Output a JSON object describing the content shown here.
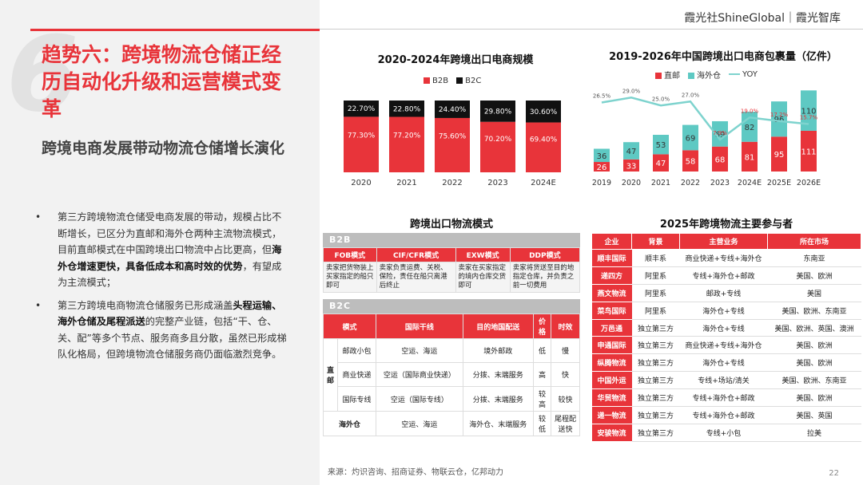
{
  "brand": "霞光社ShineGlobal｜霞光智库",
  "big_number": "6",
  "title": "趋势六：跨境物流仓储正经历自动化升级和运营模式变革",
  "subtitle": "跨境电商发展带动物流仓储增长演化",
  "bullets": [
    {
      "pre": "第三方跨境物流仓储受电商发展的带动，规模占比不断增长，已区分为直邮和海外仓两种主流物流模式，目前直邮模式在中国跨境出口物流中占比更高，但",
      "bold": "海外仓增速更快，具备低成本和高时效的优势",
      "post": "，有望成为主流模式；"
    },
    {
      "pre": "第三方跨境电商物流仓储服务已形成涵盖",
      "bold": "头程运输、海外仓储及尾程派送",
      "post": "的完整产业链，包括“干、仓、关、配”等多个节点、服务商多且分散，虽然已形成梯队化格局，但跨境物流仓储服务商仍面临激烈竞争。"
    }
  ],
  "chart1": {
    "title": "2020-2024年跨境出口电商规模",
    "legend": [
      "B2B",
      "B2C"
    ],
    "colors": {
      "b2b": "#e8343a",
      "b2c": "#111111"
    },
    "categories": [
      "2020",
      "2021",
      "2022",
      "2023",
      "2024E"
    ],
    "b2b_labels": [
      "77.30%",
      "77.20%",
      "75.60%",
      "70.20%",
      "69.40%"
    ],
    "b2c_labels": [
      "22.70%",
      "22.80%",
      "24.40%",
      "29.80%",
      "30.60%"
    ]
  },
  "chart2": {
    "title": "2019-2026年中国跨境出口电商包裹量（亿件）",
    "legend": [
      "直邮",
      "海外仓",
      "YOY"
    ],
    "colors": {
      "direct": "#e8343a",
      "overseas": "#5ec9c3",
      "yoy": "#7ed3ce"
    },
    "categories": [
      "2019",
      "2020",
      "2021",
      "2022",
      "2023",
      "2024E",
      "2025E",
      "2026E"
    ],
    "direct_labels": [
      "26",
      "33",
      "47",
      "58",
      "68",
      "81",
      "95",
      "111"
    ],
    "overseas_labels": [
      "36",
      "47",
      "53",
      "69",
      "69",
      "82",
      "96",
      "110"
    ],
    "yoy_labels": [
      "26.5%",
      "29.0%",
      "25.0%",
      "27.0%",
      "7.9%",
      "19.0%",
      "17.2%",
      "15.7%"
    ]
  },
  "chart_data": [
    {
      "type": "bar",
      "title": "2020-2024年跨境出口电商规模",
      "categories": [
        "2020",
        "2021",
        "2022",
        "2023",
        "2024E"
      ],
      "series": [
        {
          "name": "B2B",
          "values": [
            77.3,
            77.2,
            75.6,
            70.2,
            69.4
          ]
        },
        {
          "name": "B2C",
          "values": [
            22.7,
            22.8,
            24.4,
            29.8,
            30.6
          ]
        }
      ],
      "ylim": [
        0,
        100
      ]
    },
    {
      "type": "bar",
      "title": "2019-2026年中国跨境出口电商包裹量（亿件）",
      "categories": [
        "2019",
        "2020",
        "2021",
        "2022",
        "2023",
        "2024E",
        "2025E",
        "2026E"
      ],
      "series": [
        {
          "name": "直邮",
          "values": [
            26,
            33,
            47,
            58,
            68,
            81,
            95,
            111
          ]
        },
        {
          "name": "海外仓",
          "values": [
            36,
            47,
            53,
            69,
            69,
            82,
            96,
            110
          ]
        },
        {
          "name": "YOY",
          "values": [
            26.5,
            29.0,
            25.0,
            27.0,
            7.9,
            19.0,
            17.2,
            15.7
          ]
        }
      ]
    }
  ],
  "logistics": {
    "title": "跨境出口物流模式",
    "b2b_label": "B2B",
    "b2b_headers": [
      "FOB模式",
      "CIF/CFR模式",
      "EXW模式",
      "DDP模式"
    ],
    "b2b_desc": [
      "卖家把货物装上买家指定的船只即可",
      "卖家负责运费、关税、保险，责任在船只离港后终止",
      "卖家在买家指定的境内仓库交货即可",
      "卖家将货送至目的地指定仓库，并负责之前一切费用"
    ],
    "b2c_label": "B2C",
    "b2c_headers": [
      "模式",
      "国际干线",
      "目的地国配送",
      "价格",
      "时效"
    ],
    "direct_group": "直邮",
    "rows": [
      {
        "mode": "邮政小包",
        "trunk": "空运、海运",
        "delivery": "境外邮政",
        "price": "低",
        "speed": "慢"
      },
      {
        "mode": "商业快递",
        "trunk": "空运（国际商业快递）",
        "delivery": "分拨、末端服务",
        "price": "高",
        "speed": "快"
      },
      {
        "mode": "国际专线",
        "trunk": "空运（国际专线）",
        "delivery": "分拨、末端服务",
        "price": "较高",
        "speed": "较快"
      }
    ],
    "overseas": {
      "mode": "海外仓",
      "trunk": "空运、海运",
      "delivery": "海外仓、末端服务",
      "price": "较低",
      "speed": "尾程配送快"
    }
  },
  "players": {
    "title": "2025年跨境物流主要参与者",
    "headers": [
      "企业",
      "背景",
      "主营业务",
      "所在市场"
    ],
    "rows": [
      {
        "company": "顺丰国际",
        "bg": "顺丰系",
        "biz": "商业快递+专线+海外仓",
        "market": "东南亚"
      },
      {
        "company": "递四方",
        "bg": "阿里系",
        "biz": "专线+海外仓+邮政",
        "market": "美国、欧洲"
      },
      {
        "company": "燕文物流",
        "bg": "阿里系",
        "biz": "邮政+专线",
        "market": "美国"
      },
      {
        "company": "菜鸟国际",
        "bg": "阿里系",
        "biz": "海外仓+专线",
        "market": "美国、欧洲、东南亚"
      },
      {
        "company": "万邑通",
        "bg": "独立第三方",
        "biz": "海外仓+专线",
        "market": "美国、欧洲、英国、澳洲"
      },
      {
        "company": "申通国际",
        "bg": "独立第三方",
        "biz": "商业快递+专线+海外仓",
        "market": "美国、欧洲"
      },
      {
        "company": "纵腾物流",
        "bg": "独立第三方",
        "biz": "海外仓+专线",
        "market": "美国、欧洲"
      },
      {
        "company": "中国外运",
        "bg": "独立第三方",
        "biz": "专线+场站/清关",
        "market": "美国、欧洲、东南亚"
      },
      {
        "company": "华贸物流",
        "bg": "独立第三方",
        "biz": "专线+海外仓+邮政",
        "market": "美国、欧洲"
      },
      {
        "company": "递一物流",
        "bg": "独立第三方",
        "biz": "专线+海外仓+邮政",
        "market": "美国、英国"
      },
      {
        "company": "安骏物流",
        "bg": "独立第三方",
        "biz": "专线+小包",
        "market": "拉美"
      }
    ]
  },
  "source": "来源：灼识咨询、招商证券、物联云仓，亿邦动力",
  "page_number": "22"
}
